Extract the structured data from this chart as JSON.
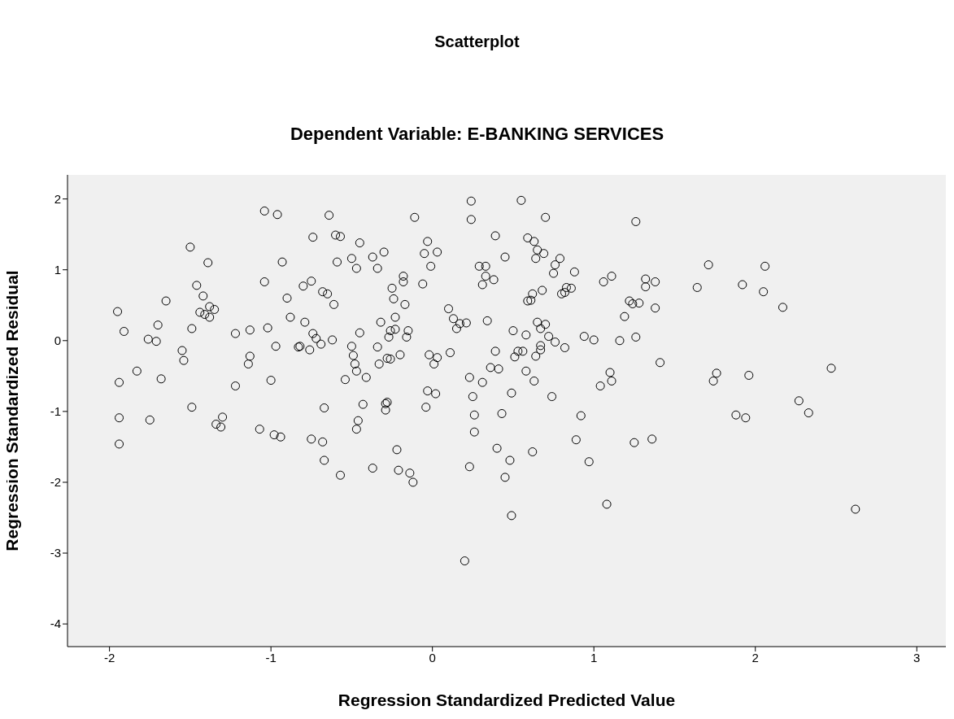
{
  "chart_data": {
    "type": "scatter",
    "title": "Scatterplot",
    "subtitle": "Dependent Variable: E-BANKING SERVICES",
    "xlabel": "Regression Standardized Predicted Value",
    "ylabel": "Regression Standardized Residual",
    "marker": "circle",
    "xlim": [
      -2.26,
      3.18
    ],
    "ylim": [
      -4.32,
      2.34
    ],
    "xticks": [
      -2,
      -1,
      0,
      1,
      2,
      3
    ],
    "yticks": [
      -4,
      -3,
      -2,
      -1,
      0,
      1,
      2
    ],
    "series": [
      {
        "color": "#000000",
        "x": [
          -1.95,
          -1.91,
          -1.94,
          -1.94,
          -1.94,
          -1.83,
          -1.76,
          -1.75,
          -1.71,
          -1.7,
          -1.68,
          -1.65,
          -1.55,
          -1.54,
          -1.5,
          -1.49,
          -1.49,
          -1.46,
          -1.42,
          -1.44,
          -1.41,
          -1.38,
          -1.39,
          -1.38,
          -1.35,
          -1.34,
          -1.31,
          -1.3,
          -1.22,
          -1.22,
          -1.14,
          -1.13,
          -1.13,
          -1.07,
          -1.04,
          -1.04,
          -1.02,
          -1.0,
          -0.98,
          -0.97,
          -0.96,
          -0.94,
          -0.93,
          -0.9,
          -0.88,
          -0.83,
          -0.82,
          -0.8,
          -0.79,
          -0.76,
          -0.75,
          -0.75,
          -0.74,
          -0.74,
          -0.72,
          -0.69,
          -0.68,
          -0.68,
          -0.67,
          -0.67,
          -0.65,
          -0.64,
          -0.62,
          -0.61,
          -0.6,
          -0.59,
          -0.57,
          -0.57,
          -0.54,
          -0.5,
          -0.5,
          -0.49,
          -0.48,
          -0.47,
          -0.47,
          -0.46,
          -0.47,
          -0.45,
          -0.45,
          -0.43,
          -0.41,
          -0.37,
          -0.37,
          -0.34,
          -0.34,
          -0.33,
          -0.32,
          -0.3,
          -0.29,
          -0.29,
          -0.28,
          -0.28,
          -0.27,
          -0.26,
          -0.26,
          -0.25,
          -0.24,
          -0.23,
          -0.23,
          -0.22,
          -0.21,
          -0.2,
          -0.18,
          -0.18,
          -0.17,
          -0.16,
          -0.15,
          -0.14,
          -0.12,
          -0.11,
          -0.06,
          -0.05,
          -0.04,
          -0.03,
          -0.03,
          -0.02,
          -0.01,
          0.01,
          0.02,
          0.03,
          0.03,
          0.1,
          0.11,
          0.13,
          0.15,
          0.17,
          0.2,
          0.21,
          0.23,
          0.23,
          0.24,
          0.24,
          0.25,
          0.26,
          0.26,
          0.29,
          0.31,
          0.31,
          0.33,
          0.33,
          0.34,
          0.36,
          0.38,
          0.39,
          0.39,
          0.4,
          0.41,
          0.43,
          0.45,
          0.45,
          0.48,
          0.49,
          0.49,
          0.5,
          0.51,
          0.53,
          0.55,
          0.56,
          0.58,
          0.58,
          0.59,
          0.59,
          0.61,
          0.62,
          0.63,
          0.62,
          0.63,
          0.64,
          0.65,
          0.64,
          0.65,
          0.67,
          0.67,
          0.67,
          0.68,
          0.69,
          0.7,
          0.72,
          0.7,
          0.74,
          0.75,
          0.76,
          0.76,
          0.79,
          0.8,
          0.82,
          0.82,
          0.83,
          0.86,
          0.88,
          0.89,
          0.92,
          0.94,
          0.97,
          1.0,
          1.04,
          1.06,
          1.08,
          1.1,
          1.11,
          1.11,
          1.16,
          1.19,
          1.22,
          1.24,
          1.25,
          1.26,
          1.26,
          1.28,
          1.32,
          1.32,
          1.36,
          1.38,
          1.38,
          1.41,
          1.64,
          1.71,
          1.74,
          1.76,
          1.92,
          1.96,
          1.88,
          1.94,
          2.05,
          2.06,
          2.17,
          2.27,
          2.33,
          2.47,
          2.62
        ],
        "values": [
          0.41,
          0.13,
          -0.59,
          -1.09,
          -1.46,
          -0.43,
          0.02,
          -1.12,
          -0.01,
          0.22,
          -0.54,
          0.56,
          -0.14,
          -0.28,
          1.32,
          0.17,
          -0.94,
          0.78,
          0.63,
          0.4,
          0.37,
          0.48,
          1.1,
          0.33,
          0.44,
          -1.18,
          -1.22,
          -1.08,
          0.1,
          -0.64,
          -0.33,
          -0.22,
          0.15,
          -1.25,
          0.83,
          1.83,
          0.18,
          -0.56,
          -1.33,
          -0.08,
          1.78,
          -1.36,
          1.11,
          0.6,
          0.33,
          -0.09,
          -0.08,
          0.77,
          0.26,
          -0.13,
          0.84,
          -1.39,
          1.46,
          0.1,
          0.03,
          -0.05,
          -1.43,
          0.69,
          -1.69,
          -0.95,
          0.66,
          1.77,
          0.01,
          0.51,
          1.49,
          1.11,
          1.47,
          -1.9,
          -0.55,
          -0.08,
          1.16,
          -0.21,
          -0.33,
          -0.43,
          -1.25,
          -1.13,
          1.02,
          1.38,
          0.11,
          -0.9,
          -0.52,
          -1.8,
          1.18,
          -0.09,
          1.02,
          -0.33,
          0.26,
          1.25,
          -0.98,
          -0.89,
          -0.25,
          -0.87,
          0.05,
          -0.26,
          0.14,
          0.74,
          0.59,
          0.33,
          0.16,
          -1.54,
          -1.83,
          -0.2,
          0.83,
          0.91,
          0.51,
          0.05,
          0.14,
          -1.87,
          -2.0,
          1.74,
          0.8,
          1.23,
          -0.94,
          -0.71,
          1.4,
          -0.2,
          1.05,
          -0.33,
          -0.75,
          -0.24,
          1.25,
          0.45,
          -0.17,
          0.31,
          0.17,
          0.24,
          -3.11,
          0.25,
          -1.78,
          -0.52,
          1.71,
          1.97,
          -0.79,
          -1.05,
          -1.29,
          1.05,
          -0.59,
          0.79,
          0.91,
          1.05,
          0.28,
          -0.38,
          0.86,
          1.48,
          -0.15,
          -1.52,
          -0.4,
          -1.03,
          1.18,
          -1.93,
          -1.69,
          -0.74,
          -2.47,
          0.14,
          -0.23,
          -0.15,
          1.98,
          -0.15,
          0.08,
          -0.43,
          0.56,
          1.45,
          0.57,
          0.66,
          -0.57,
          -1.57,
          1.4,
          1.16,
          0.26,
          -0.22,
          1.28,
          -0.07,
          0.17,
          -0.13,
          0.71,
          1.23,
          0.23,
          0.06,
          1.74,
          -0.79,
          0.95,
          1.07,
          -0.02,
          1.16,
          0.66,
          -0.1,
          0.68,
          0.75,
          0.74,
          0.97,
          -1.4,
          -1.06,
          0.06,
          -1.71,
          0.01,
          -0.64,
          0.83,
          -2.31,
          -0.45,
          0.91,
          -0.57,
          0.0,
          0.34,
          0.56,
          0.52,
          -1.44,
          0.05,
          1.68,
          0.53,
          0.87,
          0.76,
          -1.39,
          0.83,
          0.46,
          -0.31,
          0.75,
          1.07,
          -0.57,
          -0.46,
          0.79,
          -0.49,
          -1.05,
          -1.09,
          0.69,
          1.05,
          0.47,
          -0.85,
          -1.02,
          -0.39,
          -2.38
        ]
      }
    ]
  }
}
